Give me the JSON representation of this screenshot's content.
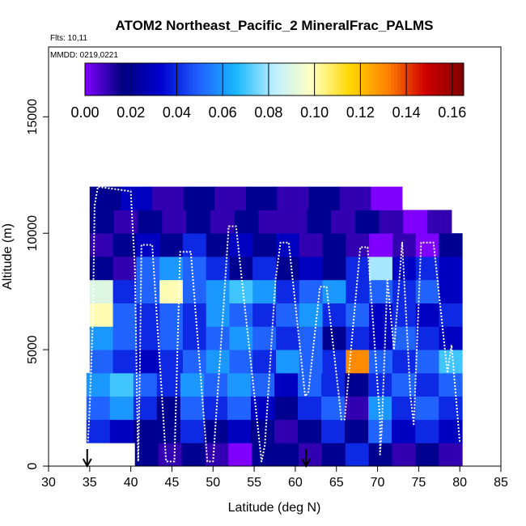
{
  "chart_data": {
    "type": "heatmap",
    "title": "ATOM2 Northeast_Pacific_2 MineralFrac_PALMS",
    "flights_label": "Flts: 10,11",
    "dates_label": "MMDD: 0219,0221",
    "xlabel": "Latitude (deg N)",
    "ylabel": "Altitude (m)",
    "xlim": [
      30,
      85
    ],
    "ylim": [
      0,
      18000
    ],
    "x_ticks": [
      "30",
      "35",
      "40",
      "45",
      "50",
      "55",
      "60",
      "65",
      "70",
      "75",
      "80",
      "85"
    ],
    "y_ticks": [
      "0",
      "5000",
      "10000",
      "15000"
    ],
    "colorbar": {
      "min": 0,
      "max": 0.165,
      "ticks": [
        "0.00",
        "0.02",
        "0.04",
        "0.06",
        "0.08",
        "0.10",
        "0.12",
        "0.14",
        "0.16"
      ],
      "colors": [
        "#7f00ff",
        "#00007f",
        "#0000d0",
        "#2060ff",
        "#18b8ff",
        "#bfefff",
        "#ffffc0",
        "#ffd800",
        "#ff8000",
        "#d00000",
        "#7f0000"
      ]
    },
    "altitude_bins": [
      {
        "alt_min": 0,
        "alt_max": 1000,
        "lat_min": 40.5,
        "lat_max": 80.3,
        "values": [
          0.02,
          0.01,
          0.02,
          0.01,
          0.0,
          0.02,
          0.02,
          0.01,
          0.02,
          0.04,
          0.02,
          0.01,
          0.02,
          0.01
        ]
      },
      {
        "alt_min": 1000,
        "alt_max": 2000,
        "lat_min": 34.6,
        "lat_max": 80.3,
        "values": [
          0.04,
          0.03,
          0.02,
          0.02,
          0.04,
          0.02,
          0.03,
          0.02,
          0.01,
          0.02,
          0.04,
          0.02,
          0.05,
          0.03,
          0.04,
          0.03
        ]
      },
      {
        "alt_min": 2000,
        "alt_max": 3000,
        "lat_min": 34.6,
        "lat_max": 80.3,
        "values": [
          0.05,
          0.06,
          0.04,
          0.02,
          0.05,
          0.04,
          0.05,
          0.03,
          0.02,
          0.04,
          0.05,
          0.01,
          0.06,
          0.04,
          0.05,
          0.04
        ]
      },
      {
        "alt_min": 3000,
        "alt_max": 4000,
        "lat_min": 34.6,
        "lat_max": 80.3,
        "values": [
          0.06,
          0.07,
          0.05,
          0.04,
          0.06,
          0.05,
          0.06,
          0.05,
          0.03,
          0.05,
          0.04,
          0.02,
          0.04,
          0.05,
          0.04,
          0.05
        ]
      },
      {
        "alt_min": 4000,
        "alt_max": 5000,
        "lat_min": 35.0,
        "lat_max": 80.3,
        "values": [
          0.05,
          0.04,
          0.03,
          0.04,
          0.05,
          0.06,
          0.05,
          0.04,
          0.06,
          0.05,
          0.04,
          0.13,
          0.05,
          0.04,
          0.05,
          0.07
        ]
      },
      {
        "alt_min": 5000,
        "alt_max": 6000,
        "lat_min": 35.0,
        "lat_max": 80.3,
        "values": [
          0.06,
          0.05,
          0.04,
          0.05,
          0.04,
          0.05,
          0.06,
          0.05,
          0.04,
          0.05,
          0.02,
          0.04,
          0.03,
          0.05,
          0.04,
          0.03
        ]
      },
      {
        "alt_min": 6000,
        "alt_max": 7000,
        "lat_min": 35.0,
        "lat_max": 80.3,
        "values": [
          0.1,
          0.05,
          0.04,
          0.05,
          0.04,
          0.06,
          0.05,
          0.04,
          0.05,
          0.06,
          0.04,
          0.05,
          0.03,
          0.04,
          0.03,
          0.04
        ]
      },
      {
        "alt_min": 7000,
        "alt_max": 8000,
        "lat_min": 35.0,
        "lat_max": 80.3,
        "values": [
          0.09,
          0.04,
          0.05,
          0.1,
          0.05,
          0.06,
          0.07,
          0.06,
          0.04,
          0.05,
          0.06,
          0.04,
          0.05,
          0.04,
          0.05,
          0.03
        ]
      },
      {
        "alt_min": 8000,
        "alt_max": 9000,
        "lat_min": 35.0,
        "lat_max": 80.3,
        "values": [
          0.02,
          0.01,
          0.05,
          0.06,
          0.05,
          0.04,
          0.02,
          0.04,
          0.02,
          0.03,
          0.02,
          0.04,
          0.08,
          0.03,
          0.04,
          0.03
        ]
      },
      {
        "alt_min": 9000,
        "alt_max": 10000,
        "lat_min": 35.0,
        "lat_max": 80.3,
        "values": [
          0.01,
          0.02,
          0.03,
          0.02,
          0.04,
          0.02,
          0.03,
          0.02,
          0.03,
          0.01,
          0.02,
          0.01,
          0.0,
          0.01,
          0.0,
          0.02
        ]
      },
      {
        "alt_min": 10000,
        "alt_max": 11000,
        "lat_min": 35.0,
        "lat_max": 79.0,
        "values": [
          0.02,
          0.01,
          0.02,
          0.01,
          0.02,
          0.01,
          0.02,
          0.01,
          0.01,
          0.02,
          0.01,
          0.02,
          0.01,
          0.0,
          0.01
        ]
      },
      {
        "alt_min": 11000,
        "alt_max": 12000,
        "lat_min": 35.0,
        "lat_max": 73.0,
        "values": [
          0.02,
          0.03,
          0.01,
          0.02,
          0.01,
          0.02,
          0.01,
          0.02,
          0.01,
          0.0
        ]
      }
    ],
    "flight_track": [
      [
        34.7,
        500
      ],
      [
        35.0,
        2500
      ],
      [
        35.4,
        6500
      ],
      [
        35.6,
        11200
      ],
      [
        36.0,
        12000
      ],
      [
        40.0,
        11800
      ],
      [
        40.5,
        8500
      ],
      [
        40.8,
        2000
      ],
      [
        40.9,
        200
      ],
      [
        41.1,
        4000
      ],
      [
        41.3,
        9500
      ],
      [
        42.6,
        9500
      ],
      [
        44.3,
        200
      ],
      [
        45.3,
        200
      ],
      [
        46.0,
        9200
      ],
      [
        47.3,
        9200
      ],
      [
        49.3,
        200
      ],
      [
        50.0,
        200
      ],
      [
        51.3,
        7000
      ],
      [
        51.9,
        10300
      ],
      [
        52.8,
        10300
      ],
      [
        55.9,
        200
      ],
      [
        56.3,
        900
      ],
      [
        57.6,
        8000
      ],
      [
        58.2,
        9600
      ],
      [
        59.2,
        9600
      ],
      [
        61.2,
        3000
      ],
      [
        61.6,
        3200
      ],
      [
        63.0,
        7700
      ],
      [
        63.8,
        7700
      ],
      [
        65.3,
        3000
      ],
      [
        65.6,
        2000
      ],
      [
        66.0,
        2000
      ],
      [
        67.9,
        9400
      ],
      [
        68.8,
        9400
      ],
      [
        70.3,
        2000
      ],
      [
        70.3,
        500
      ],
      [
        70.5,
        1500
      ],
      [
        71.2,
        8000
      ],
      [
        72.0,
        5000
      ],
      [
        73.0,
        9600
      ],
      [
        74.0,
        3000
      ],
      [
        74.4,
        1800
      ],
      [
        75.3,
        9600
      ],
      [
        76.8,
        9600
      ],
      [
        78.5,
        4000
      ],
      [
        79.0,
        5200
      ],
      [
        80.0,
        1000
      ]
    ],
    "arrow_markers_lat": [
      34.7,
      61.3
    ]
  }
}
